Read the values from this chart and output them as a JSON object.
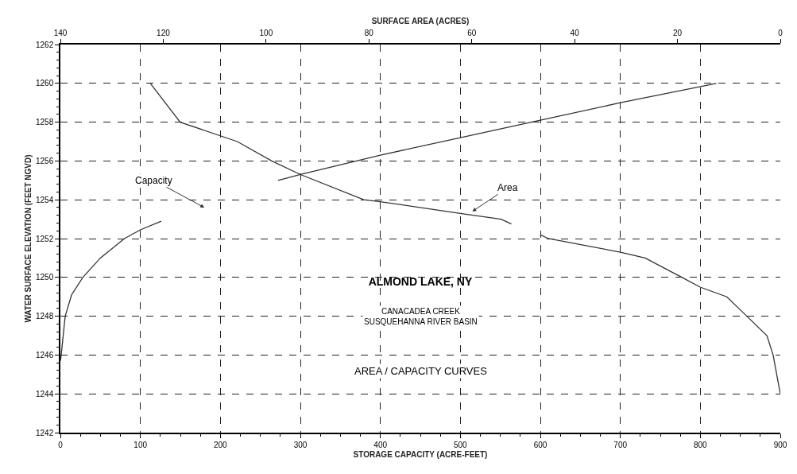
{
  "chart_data": {
    "type": "line",
    "title": "ALMOND LAKE, NY",
    "subtitle": "CANACADEA CREEK\nSUSQUEHANNA RIVER BASIN",
    "xlabel": "STORAGE CAPACITY (ACRE-FEET)",
    "x2label": "SURFACE AREA (ACRES)",
    "ylabel": "WATER SURFACE ELEVATION (FEET NGVD)",
    "annotations": [
      "AREA / CAPACITY CURVES",
      "Capacity",
      {
        "text": "Area",
        "x": 515,
        "y": 1253.4
      }
    ],
    "series": [
      {
        "color": "#333333",
        "x": [
          0,
          1,
          6,
          14,
          28,
          50,
          80,
          100,
          126
        ],
        "values": [
          1245.7,
          1246,
          1248,
          1249.1,
          1250,
          1251,
          1252,
          1252.45,
          1252.9
        ]
      },
      {
        "color": "#333333",
        "x": [
          272,
          300,
          400,
          500,
          600,
          700,
          820
        ],
        "values": [
          1255,
          1255.3,
          1256.3,
          1257.2,
          1258.1,
          1259,
          1260
        ]
      },
      {
        "color": "#333333",
        "axis": "x2",
        "x": [
          122.5,
          116.7,
          105.6,
          98.9,
          93.3,
          81,
          77.8,
          62.2,
          54.3,
          52.3
        ],
        "values": [
          1260,
          1258,
          1257,
          1256,
          1255.3,
          1254,
          1253.9,
          1253.3,
          1253,
          1252.75
        ]
      },
      {
        "color": "#333333",
        "axis": "x2",
        "x": [
          46.7,
          45.1,
          31.1,
          26.3,
          19.1,
          15.6,
          10.4,
          6.5,
          2.6,
          1.4,
          0
        ],
        "values": [
          1252.2,
          1252,
          1251.3,
          1251,
          1250,
          1249.5,
          1249,
          1248,
          1247,
          1246,
          1244
        ]
      }
    ],
    "xlim": [
      0,
      900
    ],
    "xticks": [
      0,
      100,
      200,
      300,
      400,
      500,
      600,
      700,
      800,
      900
    ],
    "x2lim": [
      140,
      0
    ],
    "x2ticks": [
      140,
      120,
      100,
      80,
      60,
      40,
      20,
      0
    ],
    "ylim": [
      1242,
      1262
    ],
    "yticks": [
      1242,
      1244,
      1246,
      1248,
      1250,
      1252,
      1254,
      1256,
      1258,
      1260,
      1262
    ],
    "grid": true,
    "line_style": "solid"
  }
}
